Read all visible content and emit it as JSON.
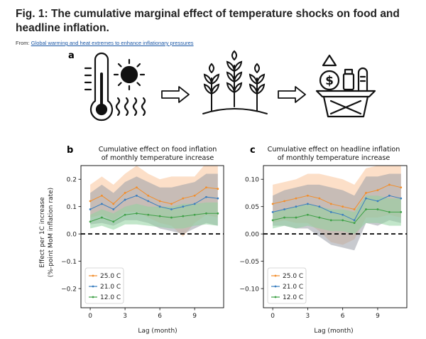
{
  "figure": {
    "title": "Fig. 1: The cumulative marginal effect of temperature shocks on food and headline inflation.",
    "from_prefix": "From:",
    "from_link": "Global warming and heat extremes to enhance inflationary pressures"
  },
  "illustration": {
    "label": "a",
    "icons": [
      "thermometer-icon",
      "sun-icon",
      "arrow-right-icon",
      "wheat-plants-icon",
      "arrow-right-icon",
      "shopping-basket-icon",
      "dollar-coin-icon",
      "up-triangle-icon"
    ]
  },
  "colors": {
    "t25": "#f28e2b",
    "t21": "#3a7ebf",
    "t12": "#3ea046",
    "band25": "#f9c49a",
    "band21": "#9a9fa8",
    "band12": "#8fd19e"
  },
  "chart_data": [
    {
      "id": "b",
      "label": "b",
      "type": "line",
      "title_lines": [
        "Cumulative effect on food inflation",
        "of monthly temperature increase"
      ],
      "xlabel": "Lag (month)",
      "ylabel_lines": [
        "Effect per 1C increase",
        "(%-point MoM inflation rate)"
      ],
      "xlim": [
        -0.8,
        11.5
      ],
      "ylim": [
        -0.27,
        0.25
      ],
      "xticks": [
        0,
        3,
        6,
        9
      ],
      "yticks": [
        -0.2,
        -0.1,
        0.0,
        0.1,
        0.2
      ],
      "ytick_labels": [
        "−0.2",
        "−0.1",
        "0.0",
        "0.1",
        "0.2"
      ],
      "zero_line": true,
      "legend_position": "lower-left",
      "x": [
        0,
        1,
        2,
        3,
        4,
        5,
        6,
        7,
        8,
        9,
        10,
        11
      ],
      "series": [
        {
          "name": "25.0 C",
          "color_key": "t25",
          "band_key": "band25",
          "values": [
            0.12,
            0.14,
            0.11,
            0.15,
            0.17,
            0.14,
            0.12,
            0.11,
            0.13,
            0.14,
            0.17,
            0.165
          ],
          "lower": [
            0.06,
            0.07,
            0.05,
            0.08,
            0.08,
            0.06,
            0.04,
            0.03,
            -0.01,
            0.04,
            0.07,
            0.06
          ],
          "upper": [
            0.18,
            0.21,
            0.18,
            0.22,
            0.25,
            0.22,
            0.2,
            0.21,
            0.21,
            0.21,
            0.26,
            0.26
          ]
        },
        {
          "name": "21.0 C",
          "color_key": "t21",
          "band_key": "band21",
          "values": [
            0.09,
            0.11,
            0.09,
            0.125,
            0.14,
            0.12,
            0.1,
            0.09,
            0.1,
            0.11,
            0.135,
            0.13
          ],
          "lower": [
            0.035,
            0.04,
            0.03,
            0.05,
            0.05,
            0.04,
            0.02,
            0.01,
            0.0,
            0.02,
            0.04,
            0.03
          ],
          "upper": [
            0.15,
            0.18,
            0.15,
            0.19,
            0.21,
            0.19,
            0.17,
            0.17,
            0.18,
            0.19,
            0.22,
            0.22
          ]
        },
        {
          "name": "12.0 C",
          "color_key": "t12",
          "band_key": "band12",
          "values": [
            0.045,
            0.06,
            0.045,
            0.07,
            0.075,
            0.07,
            0.065,
            0.06,
            0.065,
            0.07,
            0.075,
            0.075
          ],
          "lower": [
            0.02,
            0.03,
            0.015,
            0.035,
            0.035,
            0.03,
            0.025,
            0.02,
            0.02,
            0.03,
            0.035,
            0.03
          ],
          "upper": [
            0.07,
            0.09,
            0.075,
            0.1,
            0.11,
            0.1,
            0.1,
            0.1,
            0.11,
            0.11,
            0.115,
            0.115
          ]
        }
      ]
    },
    {
      "id": "c",
      "label": "c",
      "type": "line",
      "title_lines": [
        "Cumulative effect on headline inflation",
        "of monthly temperature increase"
      ],
      "xlabel": "Lag (month)",
      "ylabel_lines": [],
      "xlim": [
        -0.8,
        11.5
      ],
      "ylim": [
        -0.135,
        0.125
      ],
      "xticks": [
        0,
        3,
        6,
        9
      ],
      "yticks": [
        -0.1,
        -0.05,
        0.0,
        0.05,
        0.1
      ],
      "ytick_labels": [
        "−0.10",
        "−0.05",
        "0.00",
        "0.05",
        "0.10"
      ],
      "zero_line": true,
      "legend_position": "lower-left",
      "x": [
        0,
        1,
        2,
        3,
        4,
        5,
        6,
        7,
        8,
        9,
        10,
        11
      ],
      "series": [
        {
          "name": "25.0 C",
          "color_key": "t25",
          "band_key": "band25",
          "values": [
            0.055,
            0.06,
            0.065,
            0.07,
            0.065,
            0.055,
            0.05,
            0.045,
            0.075,
            0.08,
            0.09,
            0.085
          ],
          "lower": [
            0.02,
            0.025,
            0.02,
            0.02,
            0.005,
            -0.015,
            -0.02,
            -0.01,
            0.03,
            0.03,
            0.035,
            0.03
          ],
          "upper": [
            0.09,
            0.095,
            0.1,
            0.11,
            0.11,
            0.105,
            0.1,
            0.09,
            0.12,
            0.125,
            0.14,
            0.145
          ]
        },
        {
          "name": "21.0 C",
          "color_key": "t21",
          "band_key": "band21",
          "values": [
            0.04,
            0.045,
            0.05,
            0.055,
            0.05,
            0.04,
            0.035,
            0.025,
            0.065,
            0.06,
            0.07,
            0.065
          ],
          "lower": [
            0.015,
            0.015,
            0.01,
            0.01,
            -0.005,
            -0.02,
            -0.025,
            -0.03,
            0.02,
            0.015,
            0.025,
            0.02
          ],
          "upper": [
            0.07,
            0.08,
            0.085,
            0.09,
            0.09,
            0.085,
            0.08,
            0.07,
            0.105,
            0.105,
            0.11,
            0.11
          ]
        },
        {
          "name": "12.0 C",
          "color_key": "t12",
          "band_key": "band12",
          "values": [
            0.025,
            0.03,
            0.03,
            0.035,
            0.03,
            0.025,
            0.025,
            0.02,
            0.045,
            0.045,
            0.04,
            0.04
          ],
          "lower": [
            0.01,
            0.015,
            0.01,
            0.015,
            0.01,
            0.005,
            0.005,
            0.0,
            0.02,
            0.02,
            0.015,
            0.015
          ],
          "upper": [
            0.04,
            0.045,
            0.05,
            0.055,
            0.05,
            0.045,
            0.045,
            0.04,
            0.07,
            0.07,
            0.065,
            0.065
          ]
        }
      ]
    }
  ]
}
